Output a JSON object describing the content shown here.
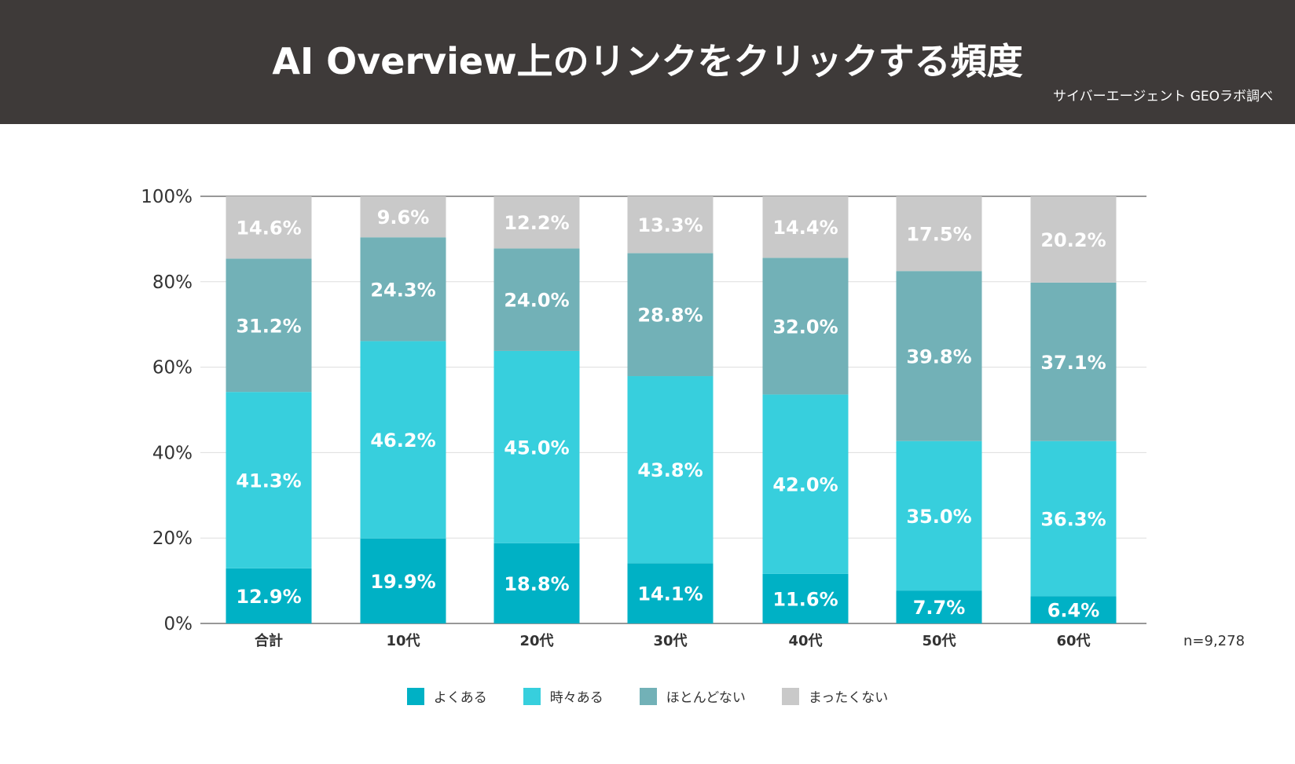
{
  "header": {
    "title": "AI Overview上のリンクをクリックする頻度",
    "source": "サイバーエージェント GEOラボ調べ"
  },
  "chart_data": {
    "type": "bar",
    "stacked": true,
    "title": "AI Overview上のリンクをクリックする頻度",
    "categories": [
      "合計",
      "10代",
      "20代",
      "30代",
      "40代",
      "50代",
      "60代"
    ],
    "series": [
      {
        "name": "よくある",
        "color": "#00b1c5",
        "values": [
          12.9,
          19.9,
          18.8,
          14.1,
          11.6,
          7.7,
          6.4
        ]
      },
      {
        "name": "時々ある",
        "color": "#37cfdd",
        "values": [
          41.3,
          46.2,
          45.0,
          43.8,
          42.0,
          35.0,
          36.3
        ]
      },
      {
        "name": "ほとんどない",
        "color": "#72b1b7",
        "values": [
          31.2,
          24.3,
          24.0,
          28.8,
          32.0,
          39.8,
          37.1
        ]
      },
      {
        "name": "まったくない",
        "color": "#c9c9c9",
        "values": [
          14.6,
          9.6,
          12.2,
          13.3,
          14.4,
          17.5,
          20.2
        ]
      }
    ],
    "ylim": [
      0,
      100
    ],
    "yticks": [
      "0%",
      "20%",
      "40%",
      "60%",
      "80%",
      "100%"
    ],
    "grid": true,
    "legend": "bottom",
    "note": "n=9,278"
  }
}
